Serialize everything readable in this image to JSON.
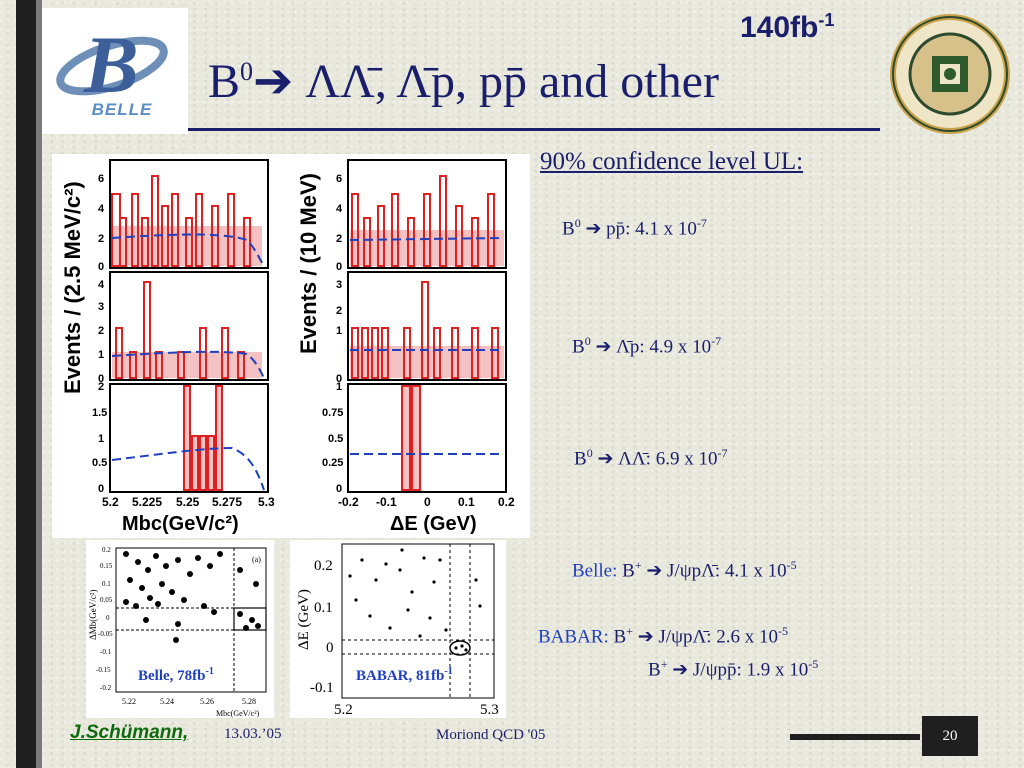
{
  "header": {
    "logo_text": "BELLE",
    "luminosity_base": "140fb",
    "luminosity_exp": "-1",
    "title_b": "B",
    "title_sup": "0",
    "title_rest": " ΛΛ̄, Λ̄p, pp̄ and other"
  },
  "main_plot": {
    "left_ylabel": "Events / (2.5 MeV/c²)",
    "right_ylabel": "Events / (10 MeV)",
    "left_xlabel": "Mbc(GeV/c²)",
    "right_xlabel": "ΔE (GeV)",
    "left_ticks_x": [
      "5.2",
      "5.225",
      "5.25",
      "5.275",
      "5.3"
    ],
    "right_ticks_x": [
      "-0.2",
      "-0.1",
      "0",
      "0.1",
      "0.2"
    ],
    "row1_yticks": [
      "0",
      "2",
      "4",
      "6"
    ],
    "row2_yticks": [
      "0",
      "1",
      "2",
      "3",
      "4"
    ],
    "row2_right_yticks": [
      "0",
      "1",
      "2",
      "3"
    ],
    "row3_yticks": [
      "0",
      "0.5",
      "1",
      "1.5",
      "2"
    ],
    "row3_right_yticks": [
      "0",
      "0.25",
      "0.5",
      "0.75",
      "1"
    ]
  },
  "results": {
    "heading": "90% confidence level UL:",
    "r1": {
      "lhs": "B",
      "sup": "0",
      "mode": "pp̄: 4.1 x 10",
      "exp": "-7"
    },
    "r2": {
      "lhs": "B",
      "sup": "0",
      "mode": "Λ̄p: 4.9 x 10",
      "exp": "-7"
    },
    "r3": {
      "lhs": "B",
      "sup": "0",
      "mode": "ΛΛ̄: 6.9 x 10",
      "exp": "-7"
    },
    "belle": {
      "label": "Belle:",
      "lhs": "B",
      "sup": "+",
      "mode": "J/ψpΛ̄: 4.1 x 10",
      "exp": "-5"
    },
    "babar1": {
      "label": "BABAR:",
      "lhs": "B",
      "sup": "+",
      "mode": "J/ψpΛ̄: 2.6 x 10",
      "exp": "-5"
    },
    "babar2": {
      "lhs": "B",
      "sup": "+",
      "mode": "J/ψpp̄: 1.9 x 10",
      "exp": "-5"
    }
  },
  "small_plots": {
    "belle_caption": "Belle, 78fb",
    "belle_caption_exp": "-1",
    "belle_ylabel": "ΔMb(GeV/c²)",
    "belle_xlabel": "Mbc(GeV/c²)",
    "belle_xticks": [
      "5.22",
      "5.24",
      "5.26",
      "5.28"
    ],
    "belle_yticks": [
      "0.2",
      "0.15",
      "0.1",
      "0.05",
      "0",
      "-0.05",
      "-0.1",
      "-0.15",
      "-0.2"
    ],
    "belle_panel": "(a)",
    "babar_caption": "BABAR, 81fb",
    "babar_caption_exp": "-1",
    "babar_ylabel": "ΔE (GeV)",
    "babar_yticks": [
      "0.2",
      "0.1",
      "0",
      "-0.1"
    ],
    "babar_xticks": [
      "5.2",
      "5.3"
    ]
  },
  "footer": {
    "author": "J.Schümann,",
    "date": "13.03.’05",
    "conference": "Moriond QCD '05",
    "page": "20"
  },
  "colors": {
    "title_navy": "#1a1e6b",
    "accent_blue": "#1f3fbf",
    "histogram_red": "#e02020",
    "fit_dashed": "#1f3fbf",
    "author_green": "#0d6b0d"
  }
}
